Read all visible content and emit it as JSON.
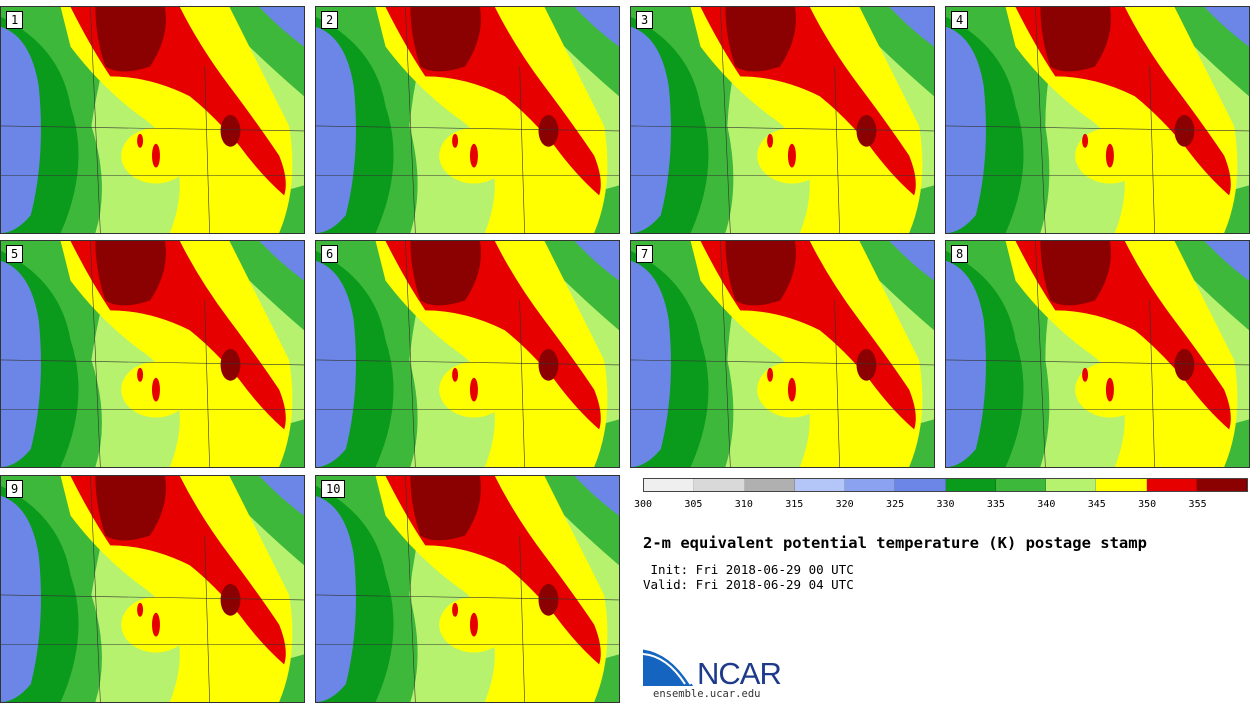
{
  "panels": [
    "1",
    "2",
    "3",
    "4",
    "5",
    "6",
    "7",
    "8",
    "9",
    "10"
  ],
  "colorbar": {
    "ticks": [
      "300",
      "305",
      "310",
      "315",
      "320",
      "325",
      "330",
      "335",
      "340",
      "345",
      "350",
      "355"
    ],
    "colors": [
      "#efefef",
      "#d9d9d9",
      "#b0b0b0",
      "#b3c6f7",
      "#8aa2f0",
      "#6b86e6",
      "#0a9a1c",
      "#3db83a",
      "#b6f26d",
      "#ffff00",
      "#e60000",
      "#8b0000"
    ]
  },
  "title": "2-m equivalent potential temperature (K) postage stamp",
  "init": " Init: Fri 2018-06-29 00 UTC",
  "valid": "Valid: Fri 2018-06-29 04 UTC",
  "logo": {
    "name": "NCAR",
    "url": "ensemble.ucar.edu"
  }
}
